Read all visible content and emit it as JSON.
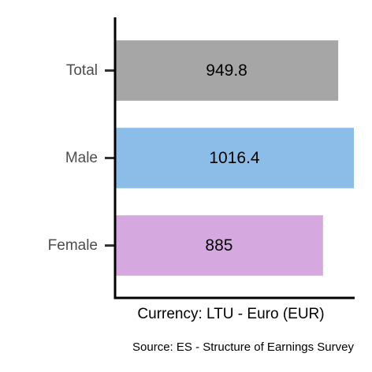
{
  "chart_data": {
    "type": "bar",
    "orientation": "horizontal",
    "categories": [
      "Total",
      "Male",
      "Female"
    ],
    "values": [
      949.8,
      1016.4,
      885
    ],
    "value_labels": [
      "949.8",
      "1016.4",
      "885"
    ],
    "colors": [
      "#a6a6a6",
      "#8bbde8",
      "#d5a8e0"
    ],
    "xlabel": "Currency: LTU - Euro (EUR)",
    "ylabel": "",
    "caption": "Source:  ES - Structure of Earnings Survey",
    "xlim": [
      0,
      1016.4
    ],
    "grid": false,
    "legend": "none"
  }
}
